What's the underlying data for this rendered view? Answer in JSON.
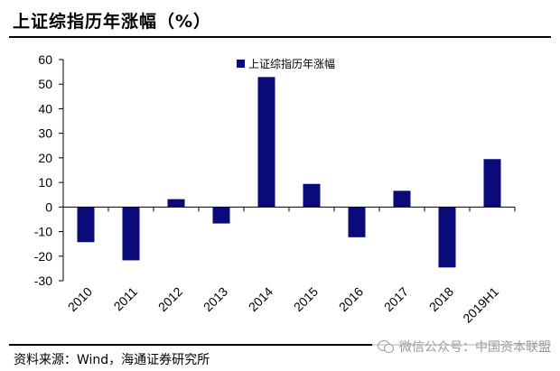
{
  "title": "上证综指历年涨幅（%）",
  "source": "资料来源：Wind，海通证券研究所",
  "watermark": "微信公众号：中国资本联盟",
  "chart_data": {
    "type": "bar",
    "categories": [
      "2010",
      "2011",
      "2012",
      "2013",
      "2014",
      "2015",
      "2016",
      "2017",
      "2018",
      "2019H1"
    ],
    "series": [
      {
        "name": "上证综指历年涨幅",
        "values": [
          -14.3,
          -21.7,
          3.2,
          -6.7,
          52.9,
          9.4,
          -12.3,
          6.6,
          -24.6,
          19.5
        ]
      }
    ],
    "ylim": [
      -30,
      60
    ],
    "yticks": [
      -30,
      -20,
      -10,
      0,
      10,
      20,
      30,
      40,
      50,
      60
    ],
    "grid": false,
    "legend": "top-center",
    "bar_color": "#0a0a7a"
  }
}
